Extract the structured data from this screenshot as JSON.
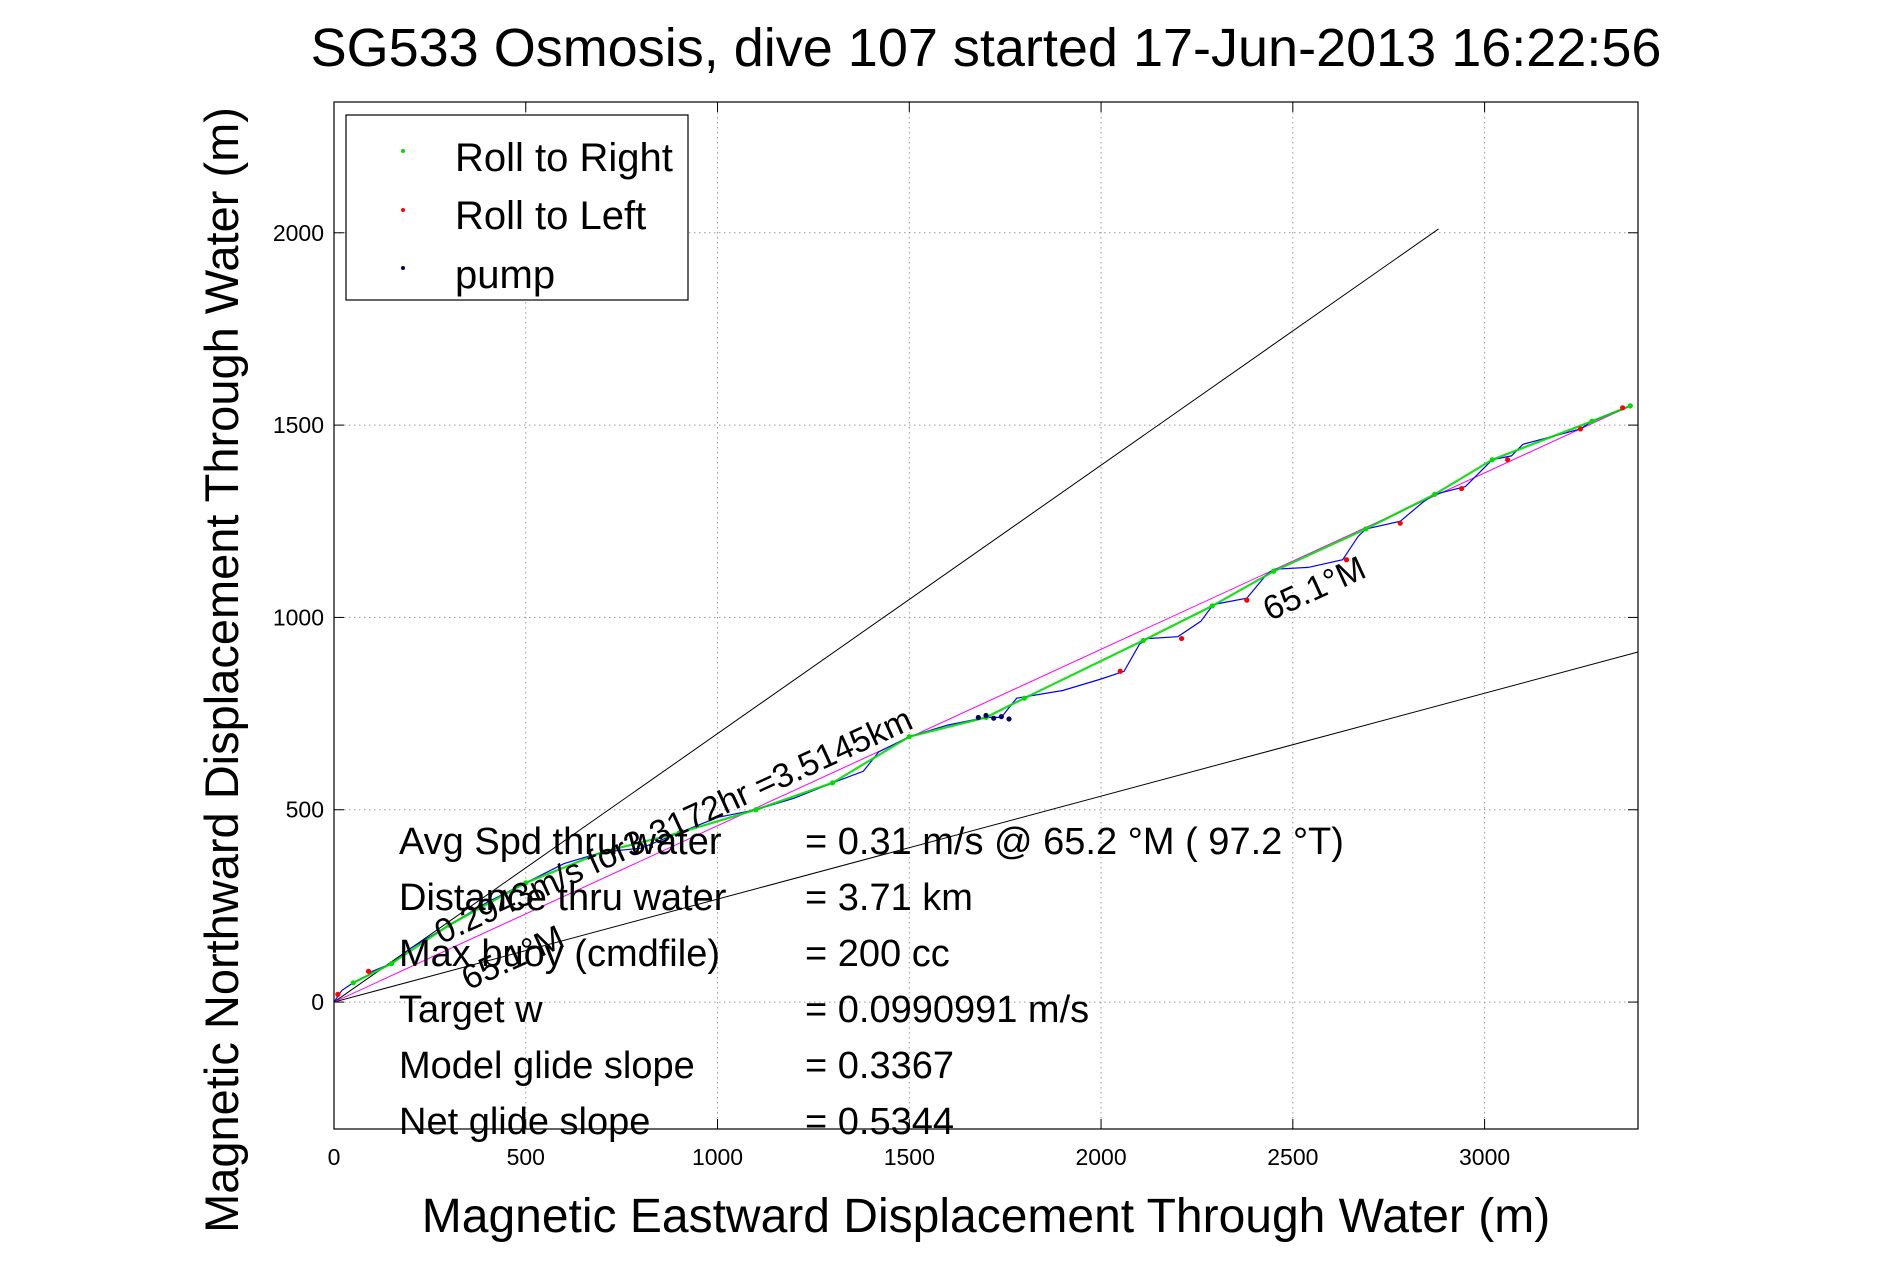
{
  "chart_data": {
    "type": "line",
    "title": "SG533 Osmosis, dive 107 started 17-Jun-2013 16:22:56",
    "xlabel": "Magnetic Eastward Displacement Through Water (m)",
    "ylabel": "Magnetic Northward Displacement Through Water (m)",
    "xlim": [
      0,
      3400
    ],
    "ylim": [
      -330,
      2340
    ],
    "xticks": [
      0,
      500,
      1000,
      1500,
      2000,
      2500,
      3000
    ],
    "yticks": [
      0,
      500,
      1000,
      1500,
      2000
    ],
    "grid": true,
    "legend_position": "top-left",
    "legend": [
      {
        "label": "Roll to Right",
        "color": "#00dd00"
      },
      {
        "label": "Roll to Left",
        "color": "#ff0000"
      },
      {
        "label": "pump",
        "color": "#000066"
      }
    ],
    "series": [
      {
        "name": "track",
        "color": "#0000ff",
        "x": [
          0,
          20,
          50,
          90,
          100,
          150,
          200,
          300,
          400,
          500,
          600,
          700,
          800,
          900,
          1000,
          1100,
          1200,
          1300,
          1380,
          1420,
          1500,
          1600,
          1700,
          1740,
          1780,
          1900,
          2000,
          2060,
          2100,
          2120,
          2200,
          2260,
          2290,
          2300,
          2380,
          2430,
          2450,
          2540,
          2630,
          2670,
          2690,
          2780,
          2840,
          2870,
          2950,
          3000,
          3020,
          3070,
          3100,
          3250,
          3280,
          3380
        ],
        "y": [
          0,
          30,
          50,
          70,
          80,
          100,
          140,
          200,
          260,
          310,
          360,
          390,
          400,
          440,
          480,
          500,
          530,
          570,
          600,
          650,
          690,
          720,
          740,
          740,
          790,
          810,
          840,
          860,
          930,
          945,
          950,
          990,
          1030,
          1035,
          1050,
          1110,
          1125,
          1130,
          1150,
          1210,
          1230,
          1250,
          1300,
          1320,
          1340,
          1390,
          1410,
          1420,
          1450,
          1490,
          1510,
          1550
        ]
      },
      {
        "name": "Roll to Right",
        "color": "#00dd00",
        "x": [
          50,
          150,
          300,
          500,
          700,
          900,
          1100,
          1300,
          1500,
          1700,
          1800,
          2110,
          2290,
          2450,
          2690,
          2870,
          3020,
          3280,
          3380
        ],
        "y": [
          50,
          100,
          200,
          310,
          390,
          440,
          500,
          570,
          690,
          740,
          790,
          940,
          1030,
          1120,
          1230,
          1320,
          1410,
          1510,
          1550
        ]
      },
      {
        "name": "Roll to Left",
        "color": "#ff0000",
        "x": [
          10,
          90,
          2050,
          2210,
          2380,
          2640,
          2780,
          2940,
          3060,
          3250,
          3360
        ],
        "y": [
          20,
          80,
          860,
          945,
          1045,
          1150,
          1245,
          1335,
          1410,
          1490,
          1545
        ]
      },
      {
        "name": "pump",
        "color": "#000066",
        "x": [
          1680,
          1700,
          1720,
          1740,
          1760
        ],
        "y": [
          740,
          745,
          738,
          742,
          736
        ]
      }
    ],
    "reference_lines": [
      {
        "x": [
          0,
          2880
        ],
        "y": [
          0,
          2010
        ],
        "color": "#000000"
      },
      {
        "x": [
          0,
          3400
        ],
        "y": [
          0,
          910
        ],
        "color": "#000000"
      },
      {
        "x": [
          0,
          3380
        ],
        "y": [
          0,
          1550
        ],
        "color": "#ff00ff"
      }
    ],
    "annotations": [
      {
        "text": "0.2943m/s for3.3172hr =3.5145km",
        "x": 280,
        "y": 150,
        "angle": 24.6
      },
      {
        "text": "65.1°M",
        "x": 2440,
        "y": 990,
        "angle": 24.6
      },
      {
        "text": "65.1°M",
        "x": 350,
        "y": 30,
        "angle": 24.6
      }
    ],
    "stats": [
      {
        "label": "Avg Spd thru water",
        "value": "=  0.31 m/s @  65.2 °M ( 97.2 °T)"
      },
      {
        "label": "Distance thru water",
        "value": "=  3.71 km"
      },
      {
        "label": "Max buoy (cmdfile)",
        "value": "= 200 cc"
      },
      {
        "label": "Target w",
        "value": "= 0.0990991 m/s"
      },
      {
        "label": "Model glide slope",
        "value": "= 0.3367"
      },
      {
        "label": "Net glide slope",
        "value": "= 0.5344"
      }
    ]
  }
}
